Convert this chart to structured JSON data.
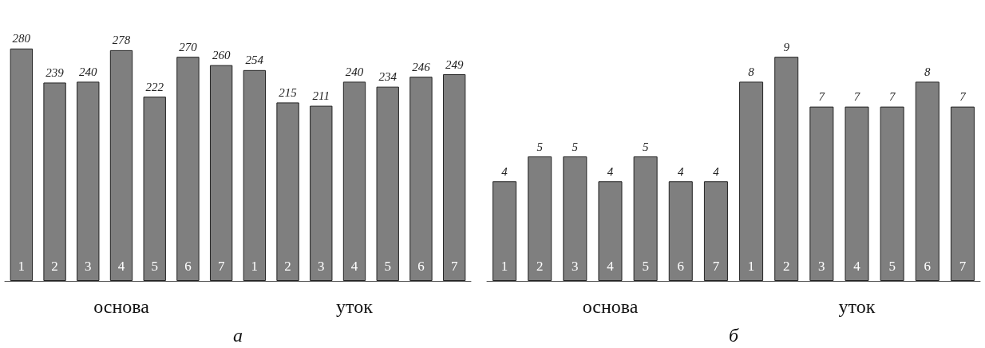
{
  "chart_data": [
    {
      "type": "bar",
      "xlabel": "а",
      "categories": [
        "1",
        "2",
        "3",
        "4",
        "5",
        "6",
        "7",
        "1",
        "2",
        "3",
        "4",
        "5",
        "6",
        "7"
      ],
      "values": [
        280,
        239,
        240,
        278,
        222,
        270,
        260,
        254,
        215,
        211,
        240,
        234,
        246,
        249
      ],
      "color": "#7f7f7f",
      "data_labels": true,
      "annotations": [
        "основа",
        "уток"
      ]
    },
    {
      "type": "bar",
      "xlabel": "б",
      "categories": [
        "1",
        "2",
        "3",
        "4",
        "5",
        "6",
        "7",
        "1",
        "2",
        "3",
        "4",
        "5",
        "6",
        "7"
      ],
      "values": [
        4,
        5,
        5,
        4,
        5,
        4,
        4,
        8,
        9,
        7,
        7,
        7,
        8,
        7
      ],
      "color": "#7f7f7f",
      "data_labels": true,
      "annotations": [
        "основа",
        "уток"
      ]
    }
  ]
}
